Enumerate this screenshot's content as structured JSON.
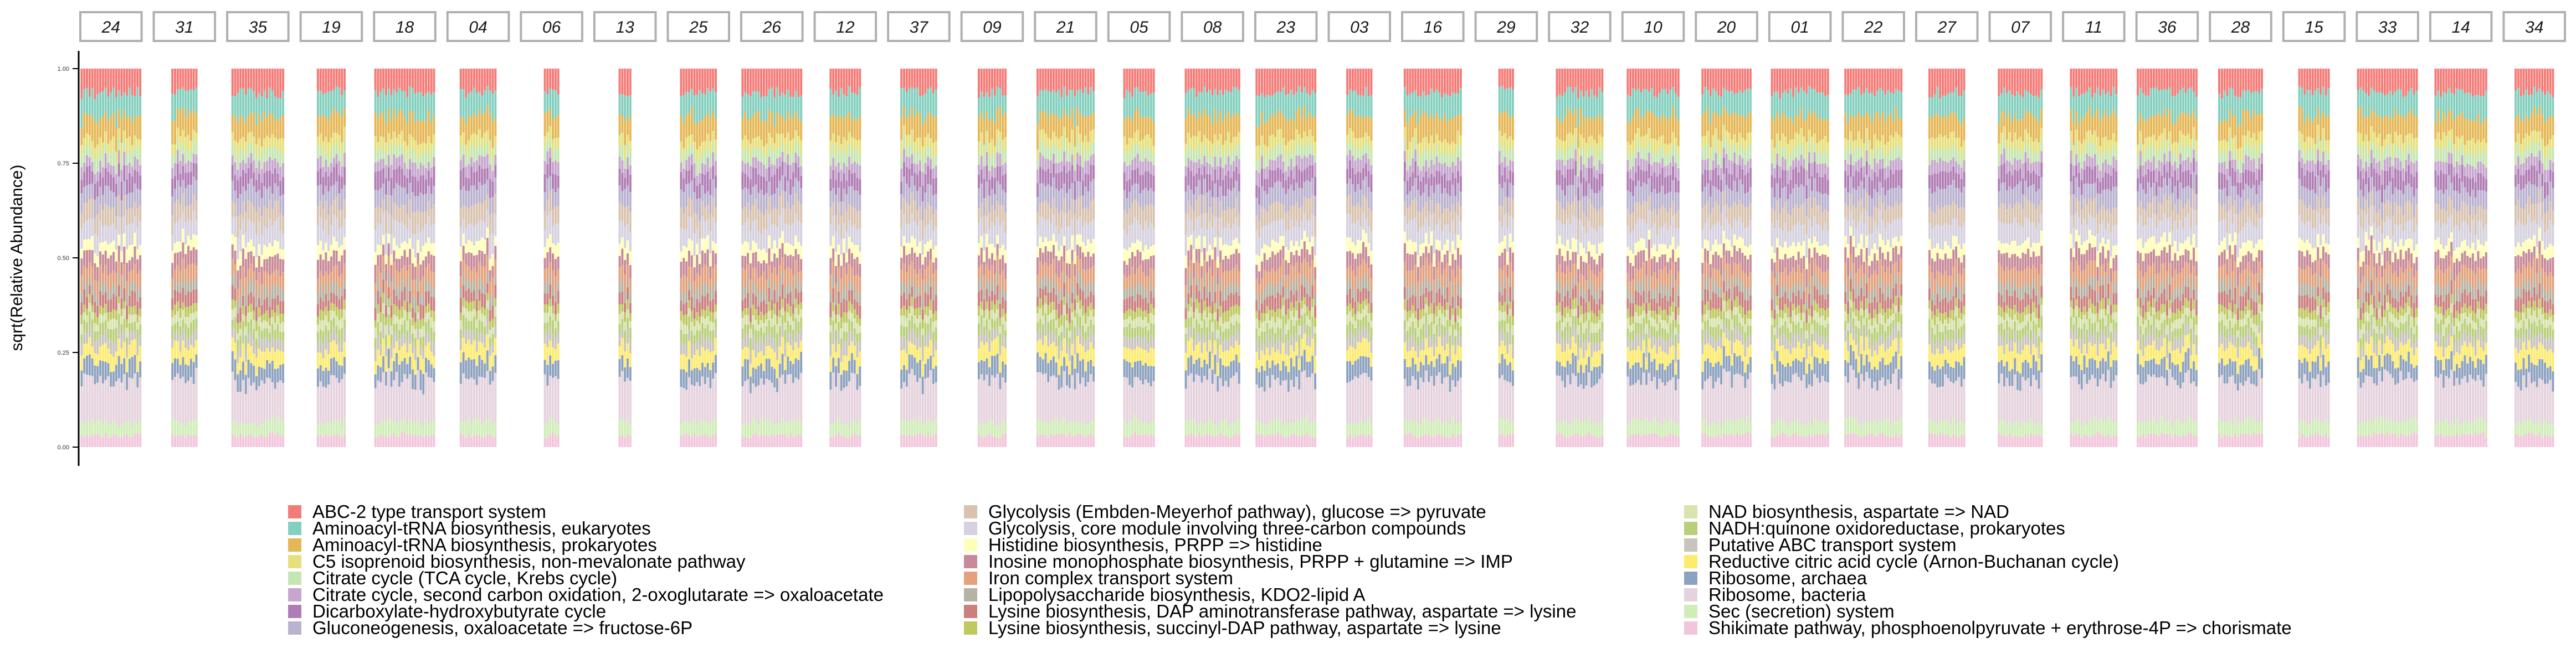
{
  "chart_data": {
    "type": "bar",
    "stacked": true,
    "faceted": true,
    "title": "",
    "xlabel": "",
    "ylabel": "sqrt(Relative Abundance)",
    "ylim": [
      0,
      1
    ],
    "y_ticks": [
      0.0,
      0.25,
      0.5,
      0.75,
      1.0
    ],
    "y_tick_labels": [
      "0.00",
      "0.25",
      "0.50",
      "0.75",
      "1.00"
    ],
    "grid": false,
    "legend_position": "bottom",
    "legend_columns": 3,
    "facets": [
      {
        "label": "24",
        "bars": 23
      },
      {
        "label": "31",
        "bars": 10
      },
      {
        "label": "35",
        "bars": 20
      },
      {
        "label": "19",
        "bars": 11
      },
      {
        "label": "18",
        "bars": 23
      },
      {
        "label": "04",
        "bars": 14
      },
      {
        "label": "06",
        "bars": 6
      },
      {
        "label": "13",
        "bars": 5
      },
      {
        "label": "25",
        "bars": 14
      },
      {
        "label": "26",
        "bars": 23
      },
      {
        "label": "12",
        "bars": 12
      },
      {
        "label": "37",
        "bars": 14
      },
      {
        "label": "09",
        "bars": 11
      },
      {
        "label": "21",
        "bars": 22
      },
      {
        "label": "05",
        "bars": 12
      },
      {
        "label": "08",
        "bars": 21
      },
      {
        "label": "23",
        "bars": 23
      },
      {
        "label": "03",
        "bars": 10
      },
      {
        "label": "16",
        "bars": 22
      },
      {
        "label": "29",
        "bars": 6
      },
      {
        "label": "32",
        "bars": 18
      },
      {
        "label": "10",
        "bars": 20
      },
      {
        "label": "20",
        "bars": 19
      },
      {
        "label": "01",
        "bars": 22
      },
      {
        "label": "22",
        "bars": 22
      },
      {
        "label": "27",
        "bars": 14
      },
      {
        "label": "07",
        "bars": 17
      },
      {
        "label": "11",
        "bars": 18
      },
      {
        "label": "36",
        "bars": 23
      },
      {
        "label": "28",
        "bars": 17
      },
      {
        "label": "15",
        "bars": 12
      },
      {
        "label": "33",
        "bars": 23
      },
      {
        "label": "14",
        "bars": 20
      },
      {
        "label": "34",
        "bars": 15
      }
    ],
    "series": [
      {
        "name": "Shikimate pathway, phosphoenolpyruvate + erythrose-4P => chorismate",
        "color": "#F2C5DB",
        "value": 0.03
      },
      {
        "name": "Sec (secretion) system",
        "color": "#D0EDB8",
        "value": 0.035
      },
      {
        "name": "Ribosome, bacteria",
        "color": "#E5D2DD",
        "value": 0.105
      },
      {
        "name": "Ribosome, archaea",
        "color": "#8DA2BF",
        "value": 0.045
      },
      {
        "name": "Reductive citric acid cycle (Arnon-Buchanan cycle)",
        "color": "#FDEB6E",
        "value": 0.038
      },
      {
        "name": "Putative ABC transport system",
        "color": "#C9C5BD",
        "value": 0.03
      },
      {
        "name": "NADH:quinone oxidoreductase, prokaryotes",
        "color": "#B9D07A",
        "value": 0.028
      },
      {
        "name": "NAD biosynthesis, aspartate => NAD",
        "color": "#D8E3B0",
        "value": 0.022
      },
      {
        "name": "Lysine biosynthesis, succinyl-DAP pathway, aspartate => lysine",
        "color": "#BFC95F",
        "value": 0.022
      },
      {
        "name": "Lysine biosynthesis, DAP aminotransferase pathway, aspartate => lysine",
        "color": "#CC7F7F",
        "value": 0.032
      },
      {
        "name": "Lipopolysaccharide biosynthesis, KDO2-lipid A",
        "color": "#B7B3A4",
        "value": 0.028
      },
      {
        "name": "Iron complex transport system",
        "color": "#E3A27C",
        "value": 0.038
      },
      {
        "name": "Inosine monophosphate biosynthesis, PRPP + glutamine => IMP",
        "color": "#C88A99",
        "value": 0.038
      },
      {
        "name": "Histidine biosynthesis, PRPP => histidine",
        "color": "#FFFFBA",
        "value": 0.03
      },
      {
        "name": "Glycolysis, core module involving three-carbon compounds",
        "color": "#D5D1DF",
        "value": 0.05
      },
      {
        "name": "Glycolysis (Embden-Meyerhof pathway), glucose => pyruvate",
        "color": "#D9C3AF",
        "value": 0.045
      },
      {
        "name": "Gluconeogenesis, oxaloacetate => fructose-6P",
        "color": "#BAB3D0",
        "value": 0.045
      },
      {
        "name": "Dicarboxylate-hydroxybutyrate cycle",
        "color": "#B07CB4",
        "value": 0.04
      },
      {
        "name": "Citrate cycle, second carbon oxidation, 2-oxoglutarate => oxaloacetate",
        "color": "#C6A6CE",
        "value": 0.03
      },
      {
        "name": "Citrate cycle (TCA cycle, Krebs cycle)",
        "color": "#C5E6B2",
        "value": 0.03
      },
      {
        "name": "C5 isoprenoid biosynthesis, non-mevalonate pathway",
        "color": "#E6E07C",
        "value": 0.03
      },
      {
        "name": "Aminoacyl-tRNA biosynthesis, prokaryotes",
        "color": "#E5B756",
        "value": 0.055
      },
      {
        "name": "Aminoacyl-tRNA biosynthesis, eukaryotes",
        "color": "#84CFBE",
        "value": 0.06
      },
      {
        "name": "ABC-2 type transport system",
        "color": "#F47C78",
        "value": 0.06
      }
    ],
    "legend": {
      "columns": [
        [
          "ABC-2 type transport system",
          "Aminoacyl-tRNA biosynthesis, eukaryotes",
          "Aminoacyl-tRNA biosynthesis, prokaryotes",
          "C5 isoprenoid biosynthesis, non-mevalonate pathway",
          "Citrate cycle (TCA cycle, Krebs cycle)",
          "Citrate cycle, second carbon oxidation, 2-oxoglutarate => oxaloacetate",
          "Dicarboxylate-hydroxybutyrate cycle",
          "Gluconeogenesis, oxaloacetate => fructose-6P"
        ],
        [
          "Glycolysis (Embden-Meyerhof pathway), glucose => pyruvate",
          "Glycolysis, core module involving three-carbon compounds",
          "Histidine biosynthesis, PRPP => histidine",
          "Inosine monophosphate biosynthesis, PRPP + glutamine => IMP",
          "Iron complex transport system",
          "Lipopolysaccharide biosynthesis, KDO2-lipid A",
          "Lysine biosynthesis, DAP aminotransferase pathway, aspartate => lysine",
          "Lysine biosynthesis, succinyl-DAP pathway, aspartate => lysine"
        ],
        [
          "NAD biosynthesis, aspartate => NAD",
          "NADH:quinone oxidoreductase, prokaryotes",
          "Putative ABC transport system",
          "Reductive citric acid cycle (Arnon-Buchanan cycle)",
          "Ribosome, archaea",
          "Ribosome, bacteria",
          "Sec (secretion) system",
          "Shikimate pathway, phosphoenolpyruvate + erythrose-4P => chorismate"
        ]
      ]
    }
  }
}
